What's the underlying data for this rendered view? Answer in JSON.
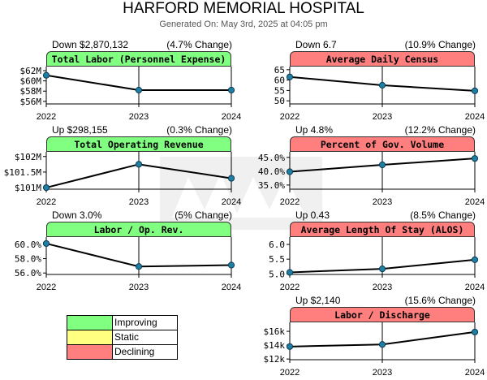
{
  "header": {
    "title": "HARFORD MEMORIAL HOSPITAL",
    "subtitle": "Generated On: May 3rd, 2025 at 04:05 pm"
  },
  "legend": [
    {
      "label": "Improving",
      "color": "#80ff80"
    },
    {
      "label": "Static",
      "color": "#ffff80"
    },
    {
      "label": "Declining",
      "color": "#ff7f7f"
    }
  ],
  "panels": [
    {
      "id": "total-labor",
      "title": "Total Labor (Personnel Expense)",
      "status": "improving",
      "change_left": "Down $2,870,132",
      "change_right": "(4.7% Change)",
      "yticks": [
        "$62M",
        "$60M",
        "$58M",
        "$56M"
      ]
    },
    {
      "id": "avg-daily-census",
      "title": "Average Daily Census",
      "status": "declining",
      "change_left": "Down 6.7",
      "change_right": "(10.9% Change)",
      "yticks": [
        "65",
        "60",
        "55",
        "50"
      ]
    },
    {
      "id": "total-operating-revenue",
      "title": "Total Operating Revenue",
      "status": "improving",
      "change_left": "Up $298,155",
      "change_right": "(0.3% Change)",
      "yticks": [
        "$102M",
        "$101.5M",
        "$101M"
      ]
    },
    {
      "id": "percent-gov-volume",
      "title": "Percent of Gov. Volume",
      "status": "declining",
      "change_left": "Up 4.8%",
      "change_right": "(12.2% Change)",
      "yticks": [
        "45.0%",
        "40.0%",
        "35.0%"
      ]
    },
    {
      "id": "labor-op-rev",
      "title": "Labor / Op. Rev.",
      "status": "improving",
      "change_left": "Down 3.0%",
      "change_right": "(5% Change)",
      "yticks": [
        "60.0%",
        "58.0%",
        "56.0%"
      ]
    },
    {
      "id": "avg-length-of-stay",
      "title": "Average Length Of Stay (ALOS)",
      "status": "declining",
      "change_left": "Up 0.43",
      "change_right": "(8.5% Change)",
      "yticks": [
        "6.0",
        "5.5",
        "5.0"
      ]
    },
    {
      "id": "labor-discharge",
      "title": "Labor / Discharge",
      "status": "declining",
      "change_left": "Up $2,140",
      "change_right": "(15.6% Change)",
      "yticks": [
        "$16k",
        "$14k",
        "$12k"
      ]
    }
  ],
  "chart_data": [
    {
      "type": "line",
      "title": "Total Labor (Personnel Expense)",
      "x": [
        "2022",
        "2023",
        "2024"
      ],
      "yticks": [
        62,
        60,
        58,
        56
      ],
      "ylim": [
        55.5,
        62.8
      ],
      "values": [
        61.1,
        58.2,
        58.2
      ]
    },
    {
      "type": "line",
      "title": "Average Daily Census",
      "x": [
        "2022",
        "2023",
        "2024"
      ],
      "yticks": [
        65,
        60,
        55,
        50
      ],
      "ylim": [
        48.5,
        66.5
      ],
      "values": [
        61.5,
        57.5,
        54.8
      ]
    },
    {
      "type": "line",
      "title": "Total Operating Revenue",
      "x": [
        "2022",
        "2023",
        "2024"
      ],
      "yticks": [
        102,
        101.5,
        101
      ],
      "ylim": [
        100.95,
        102.15
      ],
      "values": [
        101.0,
        101.75,
        101.3
      ]
    },
    {
      "type": "line",
      "title": "Percent of Gov. Volume",
      "x": [
        "2022",
        "2023",
        "2024"
      ],
      "yticks": [
        45.0,
        40.0,
        35.0
      ],
      "ylim": [
        33.5,
        47.0
      ],
      "values": [
        39.8,
        42.3,
        44.6
      ]
    },
    {
      "type": "line",
      "title": "Labor / Op. Rev.",
      "x": [
        "2022",
        "2023",
        "2024"
      ],
      "yticks": [
        60.0,
        58.0,
        56.0
      ],
      "ylim": [
        55.8,
        61.0
      ],
      "values": [
        60.1,
        56.9,
        57.1
      ]
    },
    {
      "type": "line",
      "title": "Average Length Of Stay (ALOS)",
      "x": [
        "2022",
        "2023",
        "2024"
      ],
      "yticks": [
        6.0,
        5.5,
        5.0
      ],
      "ylim": [
        4.98,
        6.25
      ],
      "values": [
        5.05,
        5.17,
        5.48
      ]
    },
    {
      "type": "line",
      "title": "Labor / Discharge",
      "x": [
        "2022",
        "2023",
        "2024"
      ],
      "yticks": [
        16,
        14,
        12
      ],
      "ylim": [
        11.9,
        17.3
      ],
      "values": [
        13.8,
        14.1,
        15.9
      ]
    }
  ]
}
